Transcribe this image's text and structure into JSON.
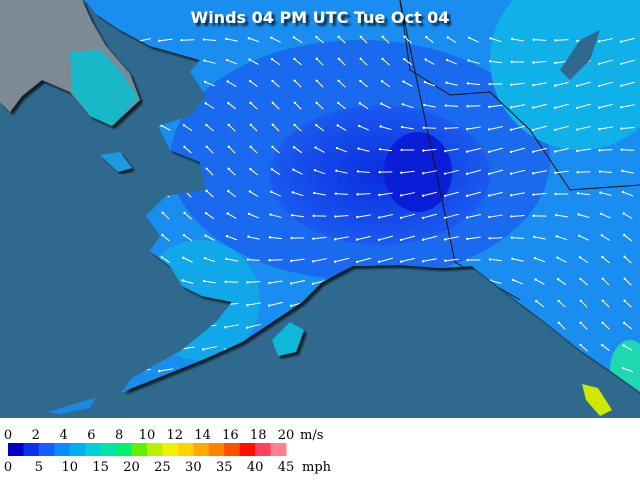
{
  "title": "Winds 04 PM UTC Tue Oct 04",
  "legend": {
    "ms_ticks": [
      0,
      2,
      4,
      6,
      8,
      10,
      12,
      14,
      16,
      18,
      20
    ],
    "ms_unit": "m/s",
    "mph_ticks": [
      0,
      5,
      10,
      15,
      20,
      25,
      30,
      35,
      40,
      45
    ],
    "mph_unit": "mph"
  }
}
